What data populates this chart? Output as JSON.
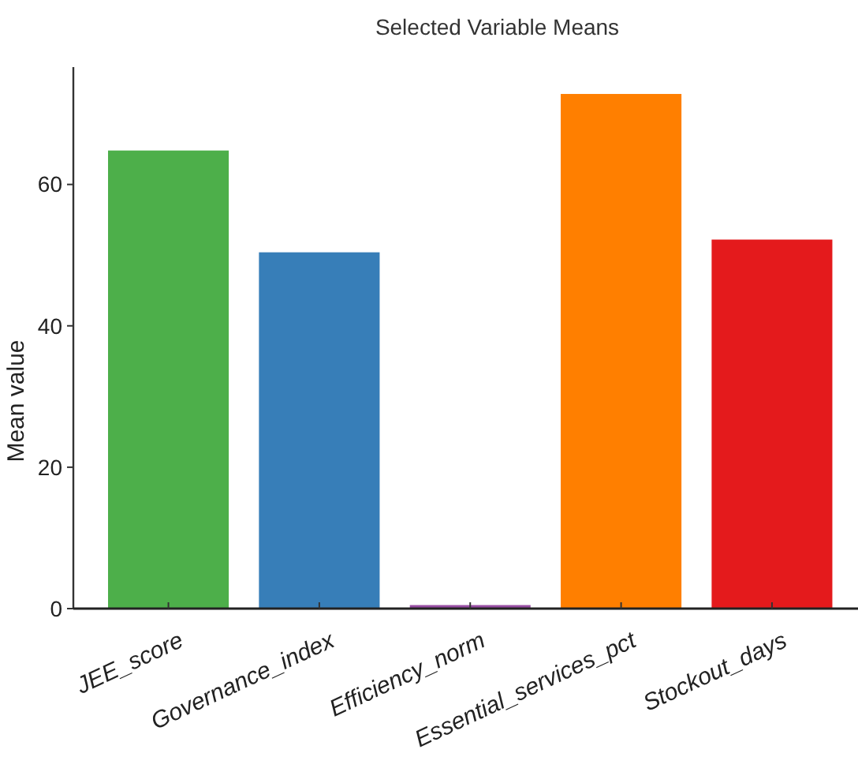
{
  "chart_data": {
    "type": "bar",
    "title": "Selected Variable Means",
    "ylabel": "Mean value",
    "categories": [
      "JEE_score",
      "Governance_index",
      "Efficiency_norm",
      "Essential_services_pct",
      "Stockout_days"
    ],
    "values": [
      64.8,
      50.4,
      0.5,
      72.8,
      52.2
    ],
    "colors": [
      "#4daf4a",
      "#377eb8",
      "#984ea3",
      "#ff7f00",
      "#e41a1c"
    ],
    "ylim": [
      0,
      76.6
    ],
    "yticks": [
      0,
      20,
      40,
      60
    ],
    "grid": false
  }
}
